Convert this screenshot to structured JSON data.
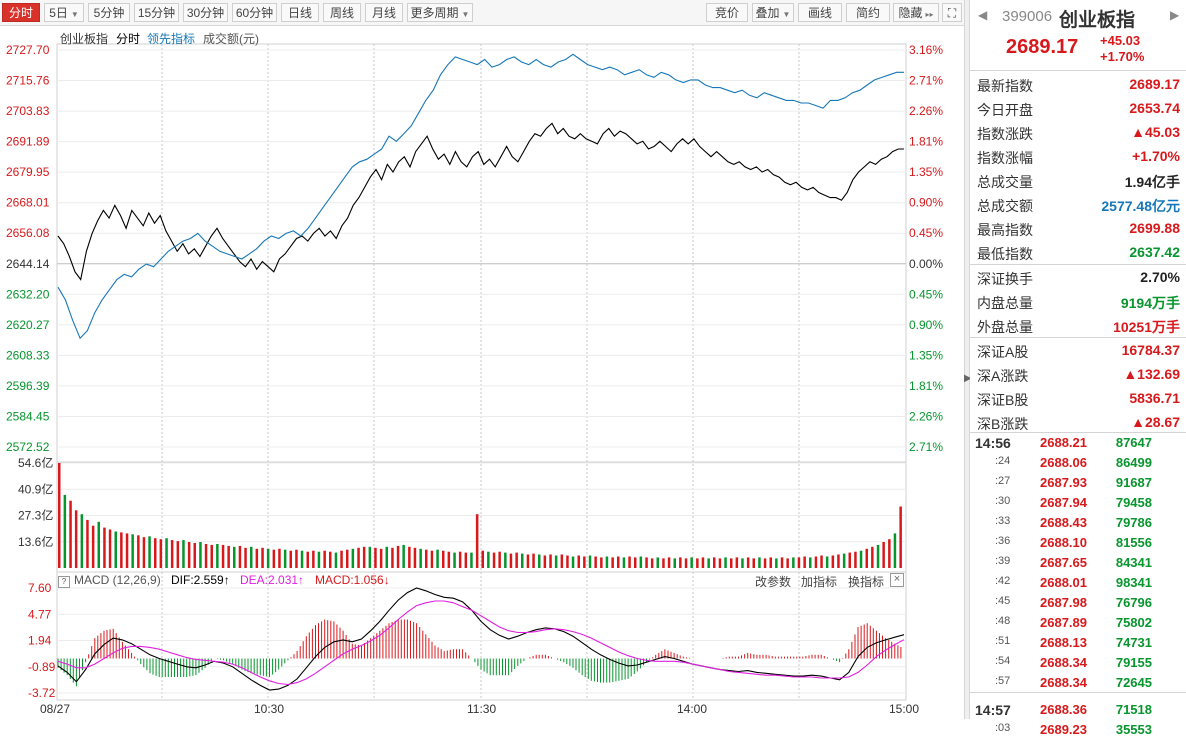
{
  "toolbar": {
    "left_tabs": [
      {
        "label": "分时",
        "caret": false,
        "active": true
      },
      {
        "label": "5日",
        "caret": true,
        "active": false
      },
      {
        "label": "5分钟",
        "caret": false,
        "active": false
      },
      {
        "label": "15分钟",
        "caret": false,
        "active": false
      },
      {
        "label": "30分钟",
        "caret": false,
        "active": false
      },
      {
        "label": "60分钟",
        "caret": false,
        "active": false
      },
      {
        "label": "日线",
        "caret": false,
        "active": false
      },
      {
        "label": "周线",
        "caret": false,
        "active": false
      },
      {
        "label": "月线",
        "caret": false,
        "active": false
      },
      {
        "label": "更多周期",
        "caret": true,
        "active": false
      }
    ],
    "right_tabs": [
      {
        "label": "竞价",
        "caret": false
      },
      {
        "label": "叠加",
        "caret": true
      },
      {
        "label": "画线",
        "caret": false
      },
      {
        "label": "简约",
        "caret": false
      },
      {
        "label": "隐藏",
        "caret": false,
        "suffix": "▸▸"
      }
    ],
    "fullscreen_icon": "expand-icon"
  },
  "chart_header": {
    "name": "创业板指",
    "mode": "分时",
    "leading": "领先指标",
    "volume": "成交额(元)"
  },
  "chart_data": [
    {
      "type": "line",
      "series": [
        {
          "name": "创业板指",
          "color": "#000000",
          "values": [
            2655,
            2652,
            2647,
            2641,
            2638,
            2649,
            2656,
            2661,
            2665,
            2662,
            2667,
            2663,
            2658,
            2665,
            2662,
            2659,
            2664,
            2660,
            2663,
            2657,
            2653,
            2649,
            2652,
            2648,
            2650,
            2647,
            2651,
            2655,
            2658,
            2654,
            2651,
            2648,
            2645,
            2643,
            2646,
            2642,
            2645,
            2643,
            2641,
            2646,
            2648,
            2651,
            2654,
            2655,
            2653,
            2656,
            2658,
            2655,
            2657,
            2654,
            2659,
            2662,
            2667,
            2670,
            2674,
            2678,
            2681,
            2677,
            2683,
            2680,
            2684,
            2686,
            2682,
            2688,
            2691,
            2694,
            2689,
            2685,
            2687,
            2683,
            2688,
            2684,
            2682,
            2686,
            2688,
            2683,
            2685,
            2682,
            2686,
            2690,
            2686,
            2684,
            2688,
            2692,
            2695,
            2694,
            2697,
            2699,
            2695,
            2697,
            2694,
            2693,
            2695,
            2693,
            2692,
            2691,
            2695,
            2697,
            2694,
            2696,
            2695,
            2693,
            2691,
            2692,
            2689,
            2690,
            2692,
            2690,
            2688,
            2691,
            2693,
            2691,
            2693,
            2690,
            2688,
            2686,
            2688,
            2686,
            2684,
            2683,
            2684,
            2682,
            2681,
            2682,
            2680,
            2681,
            2679,
            2678,
            2676,
            2675,
            2676,
            2674,
            2673,
            2674,
            2672,
            2671,
            2670,
            2670,
            2669,
            2672,
            2677,
            2680,
            2682,
            2684,
            2683,
            2685,
            2686,
            2688,
            2689,
            2689
          ]
        },
        {
          "name": "领先指标",
          "color": "#1677b8",
          "values": [
            2635,
            2630,
            2622,
            2615,
            2618,
            2625,
            2630,
            2634,
            2638,
            2640,
            2639,
            2642,
            2644,
            2643,
            2646,
            2649,
            2651,
            2653,
            2654,
            2656,
            2653,
            2651,
            2649,
            2648,
            2647,
            2646,
            2648,
            2650,
            2653,
            2655,
            2654,
            2656,
            2657,
            2655,
            2658,
            2662,
            2666,
            2670,
            2674,
            2678,
            2682,
            2684,
            2685,
            2687,
            2689,
            2694,
            2692,
            2695,
            2698,
            2703,
            2708,
            2712,
            2718,
            2722,
            2725,
            2724,
            2723,
            2722,
            2724,
            2721,
            2722,
            2724,
            2725,
            2723,
            2722,
            2724,
            2722,
            2721,
            2723,
            2724,
            2726,
            2724,
            2722,
            2721,
            2720,
            2721,
            2720,
            2718,
            2719,
            2720,
            2718,
            2717,
            2719,
            2718,
            2716,
            2715,
            2716,
            2716,
            2714,
            2713,
            2713,
            2712,
            2711,
            2712,
            2710,
            2709,
            2711,
            2710,
            2709,
            2708,
            2708,
            2707,
            2707,
            2706,
            2705,
            2708,
            2708,
            2709,
            2711,
            2712,
            2714,
            2716,
            2717,
            2718,
            2719,
            2719
          ]
        }
      ],
      "y_ticks": [
        "2727.70",
        "2715.76",
        "2703.83",
        "2691.89",
        "2679.95",
        "2668.01",
        "2656.08",
        "2644.14",
        "2632.20",
        "2620.27",
        "2608.33",
        "2596.39",
        "2584.45",
        "2572.52"
      ],
      "pct_ticks": [
        {
          "label": "3.16%",
          "color": "red"
        },
        {
          "label": "2.71%",
          "color": "red"
        },
        {
          "label": "2.26%",
          "color": "red"
        },
        {
          "label": "1.81%",
          "color": "red"
        },
        {
          "label": "1.35%",
          "color": "red"
        },
        {
          "label": "0.90%",
          "color": "red"
        },
        {
          "label": "0.45%",
          "color": "red"
        },
        {
          "label": "0.00%",
          "color": "black"
        },
        {
          "label": "0.45%",
          "color": "green"
        },
        {
          "label": "0.90%",
          "color": "green"
        },
        {
          "label": "1.35%",
          "color": "green"
        },
        {
          "label": "1.81%",
          "color": "green"
        },
        {
          "label": "2.26%",
          "color": "green"
        },
        {
          "label": "2.71%",
          "color": "green"
        }
      ],
      "ylim": [
        2572.52,
        2727.7
      ],
      "baseline": 2644.14,
      "x_ticks": [
        "08/27",
        "10:30",
        "11:30",
        "14:00",
        "15:00"
      ]
    },
    {
      "type": "bar",
      "y_ticks": [
        "54.6亿",
        "40.9亿",
        "27.3亿",
        "13.6亿"
      ],
      "ylim": [
        0,
        54.6
      ],
      "values": [
        54.6,
        38.0,
        35.0,
        30.0,
        28.0,
        25.0,
        22.0,
        24.0,
        21.0,
        20.0,
        19.0,
        18.5,
        18.0,
        17.5,
        17.0,
        16.0,
        16.5,
        15.5,
        15.0,
        15.5,
        14.5,
        14.0,
        14.5,
        13.5,
        13.0,
        13.5,
        12.5,
        12.0,
        12.5,
        12.0,
        11.5,
        11.0,
        11.5,
        10.5,
        11.0,
        10.0,
        10.5,
        10.0,
        9.5,
        10.0,
        9.5,
        9.0,
        9.5,
        9.0,
        8.5,
        9.0,
        8.5,
        9.0,
        8.5,
        8.0,
        9.0,
        9.5,
        10.0,
        10.5,
        11.0,
        11.0,
        10.5,
        10.0,
        11.0,
        10.5,
        11.5,
        12.0,
        11.0,
        10.5,
        10.0,
        9.5,
        9.0,
        9.5,
        9.0,
        8.5,
        8.0,
        8.5,
        8.0,
        8.0,
        28.0,
        9.0,
        8.5,
        8.0,
        8.5,
        8.0,
        7.5,
        8.0,
        7.5,
        7.0,
        7.5,
        7.0,
        6.5,
        7.0,
        6.5,
        7.0,
        6.5,
        6.0,
        6.5,
        6.0,
        6.5,
        6.0,
        5.5,
        6.0,
        5.5,
        6.0,
        5.5,
        6.0,
        5.5,
        6.0,
        5.5,
        5.0,
        5.5,
        5.0,
        5.5,
        5.0,
        5.5,
        5.0,
        5.5,
        5.0,
        5.5,
        5.0,
        5.5,
        5.0,
        5.5,
        5.0,
        5.5,
        5.0,
        5.5,
        5.0,
        5.5,
        5.0,
        5.5,
        5.0,
        5.5,
        5.0,
        5.5,
        5.5,
        6.0,
        5.5,
        6.0,
        6.5,
        6.0,
        6.5,
        7.0,
        7.5,
        8.0,
        8.5,
        9.0,
        10.0,
        11.0,
        12.0,
        13.5,
        15.0,
        18.0,
        32.0
      ]
    },
    {
      "type": "bar",
      "indicator_label": "MACD (12,26,9)",
      "dif_label": "DIF:2.559↑",
      "dea_label": "DEA:2.031↑",
      "macd_label": "MACD:1.056↓",
      "y_ticks": [
        "7.60",
        "4.77",
        "1.94",
        "-0.89",
        "-3.72"
      ],
      "ylim": [
        -3.72,
        7.6
      ],
      "dif": [
        -0.8,
        -1.5,
        -2.5,
        -1.2,
        0.5,
        1.5,
        2.2,
        2.0,
        1.6,
        1.0,
        0.4,
        0.0,
        -0.3,
        -0.6,
        -0.9,
        -1.0,
        -0.7,
        -0.3,
        -0.5,
        -0.9,
        -1.6,
        -2.3,
        -2.9,
        -3.4,
        -3.3,
        -2.9,
        -2.2,
        -1.0,
        0.2,
        1.2,
        1.8,
        2.0,
        1.8,
        2.1,
        3.0,
        4.0,
        5.2,
        6.3,
        7.1,
        7.6,
        7.3,
        6.9,
        6.6,
        6.5,
        6.1,
        5.2,
        4.0,
        3.1,
        2.5,
        2.1,
        2.4,
        2.8,
        3.1,
        3.3,
        3.2,
        2.9,
        2.4,
        1.7,
        1.0,
        0.4,
        -0.1,
        -0.5,
        -0.8,
        -0.7,
        -0.4,
        -0.1,
        0.2,
        0.0,
        -0.3,
        -0.6,
        -0.8,
        -1.0,
        -1.2,
        -1.3,
        -1.4,
        -1.3,
        -1.5,
        -1.6,
        -1.7,
        -1.8,
        -1.9,
        -1.9,
        -1.8,
        -1.9,
        -2.1,
        -2.3,
        -1.5,
        0.2,
        1.2,
        1.7,
        2.0,
        2.3,
        2.56
      ],
      "dea": [
        -0.3,
        -0.6,
        -1.0,
        -1.0,
        -0.6,
        0.0,
        0.6,
        1.1,
        1.3,
        1.3,
        1.2,
        1.0,
        0.7,
        0.4,
        0.1,
        -0.1,
        -0.2,
        -0.3,
        -0.4,
        -0.6,
        -1.0,
        -1.5,
        -2.0,
        -2.4,
        -2.7,
        -2.8,
        -2.6,
        -2.2,
        -1.6,
        -0.9,
        -0.2,
        0.5,
        1.0,
        1.4,
        1.9,
        2.5,
        3.3,
        4.2,
        5.0,
        5.7,
        6.0,
        6.2,
        6.2,
        6.0,
        5.6,
        5.2,
        4.6,
        4.0,
        3.4,
        3.0,
        2.8,
        2.8,
        2.9,
        3.1,
        3.2,
        3.1,
        2.9,
        2.6,
        2.2,
        1.7,
        1.2,
        0.7,
        0.3,
        0.0,
        -0.2,
        -0.3,
        -0.3,
        -0.3,
        -0.4,
        -0.6,
        -0.8,
        -1.0,
        -1.2,
        -1.4,
        -1.5,
        -1.6,
        -1.7,
        -1.8,
        -1.8,
        -1.9,
        -2.0,
        -2.0,
        -2.0,
        -2.1,
        -2.1,
        -2.1,
        -2.0,
        -1.5,
        -0.7,
        0.2,
        0.9,
        1.5,
        2.03
      ]
    }
  ],
  "macd_links": [
    "改参数",
    "加指标",
    "换指标"
  ],
  "quote": {
    "code": "399006",
    "name": "创业板指",
    "price": "2689.17",
    "change": "+45.03",
    "pct": "+1.70%",
    "rows": [
      {
        "k": "最新指数",
        "v": "2689.17",
        "c": "red"
      },
      {
        "k": "今日开盘",
        "v": "2653.74",
        "c": "red"
      },
      {
        "k": "指数涨跌",
        "v": "▲45.03",
        "c": "red"
      },
      {
        "k": "指数涨幅",
        "v": "+1.70%",
        "c": "red"
      },
      {
        "k": "总成交量",
        "v": "1.94亿手",
        "c": "black"
      },
      {
        "k": "总成交额",
        "v": "2577.48亿元",
        "c": "blue"
      },
      {
        "k": "最高指数",
        "v": "2699.88",
        "c": "red"
      },
      {
        "k": "最低指数",
        "v": "2637.42",
        "c": "green"
      },
      {
        "k": "深证换手",
        "v": "2.70%",
        "c": "black"
      },
      {
        "k": "内盘总量",
        "v": "9194万手",
        "c": "green"
      },
      {
        "k": "外盘总量",
        "v": "10251万手",
        "c": "red"
      },
      {
        "k": "深证A股",
        "v": "16784.37",
        "c": "red"
      },
      {
        "k": "深A涨跌",
        "v": "▲132.69",
        "c": "red"
      },
      {
        "k": "深证B股",
        "v": "5836.71",
        "c": "red"
      },
      {
        "k": "深B涨跌",
        "v": "▲28.67",
        "c": "red"
      }
    ],
    "ticks": [
      {
        "t": "14:56",
        "p": "2688.21",
        "v": "87647",
        "big": true
      },
      {
        "t": ":24",
        "p": "2688.06",
        "v": "86499"
      },
      {
        "t": ":27",
        "p": "2687.93",
        "v": "91687"
      },
      {
        "t": ":30",
        "p": "2687.94",
        "v": "79458"
      },
      {
        "t": ":33",
        "p": "2688.43",
        "v": "79786"
      },
      {
        "t": ":36",
        "p": "2688.10",
        "v": "81556"
      },
      {
        "t": ":39",
        "p": "2687.65",
        "v": "84341"
      },
      {
        "t": ":42",
        "p": "2688.01",
        "v": "98341"
      },
      {
        "t": ":45",
        "p": "2687.98",
        "v": "76796"
      },
      {
        "t": ":48",
        "p": "2687.89",
        "v": "75802"
      },
      {
        "t": ":51",
        "p": "2688.13",
        "v": "74731"
      },
      {
        "t": ":54",
        "p": "2688.34",
        "v": "79155"
      },
      {
        "t": ":57",
        "p": "2688.34",
        "v": "72645"
      },
      {
        "t": "14:57",
        "p": "2688.36",
        "v": "71518",
        "big": true
      },
      {
        "t": ":03",
        "p": "2689.23",
        "v": "35553"
      }
    ]
  },
  "colors": {
    "up": "#d7191c",
    "down": "#08952e",
    "price_line": "#000000",
    "lead_line": "#1677b8",
    "dif": "#000000",
    "dea": "#e020e0",
    "accent": "#d9322b"
  }
}
